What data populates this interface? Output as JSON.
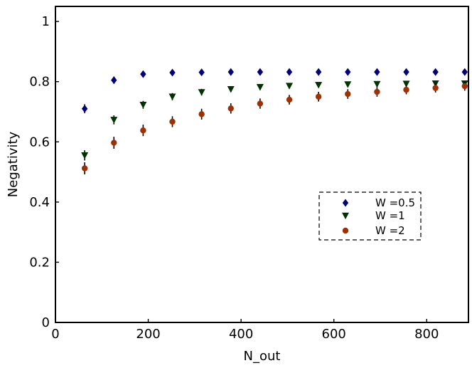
{
  "chart_data": {
    "type": "scatter",
    "title": "",
    "xlabel": "N_out",
    "ylabel": "Negativity",
    "xlim": [
      0,
      890
    ],
    "ylim": [
      0,
      1.05
    ],
    "xticks": [
      0,
      200,
      400,
      600,
      800
    ],
    "xtick_labels": [
      "0",
      "200",
      "400",
      "600",
      "800"
    ],
    "yticks": [
      0,
      0.2,
      0.4,
      0.6,
      0.8,
      1
    ],
    "ytick_labels": [
      "0",
      "0.2",
      "0.4",
      "0.6",
      "0.8",
      "1"
    ],
    "grid": false,
    "legend_position": "center-right",
    "legend_style": "dashed-box",
    "series": [
      {
        "name": "W =0.5",
        "marker": "diamond",
        "color": "#00007a",
        "x": [
          63,
          126,
          189,
          252,
          315,
          378,
          441,
          504,
          567,
          630,
          693,
          756,
          819,
          882
        ],
        "y": [
          0.71,
          0.805,
          0.825,
          0.83,
          0.831,
          0.832,
          0.832,
          0.832,
          0.832,
          0.832,
          0.832,
          0.832,
          0.832,
          0.832
        ],
        "yerr": [
          0.015,
          0.012,
          0.01,
          0.008,
          0.007,
          0.006,
          0.006,
          0.006,
          0.006,
          0.006,
          0.006,
          0.006,
          0.006,
          0.006
        ]
      },
      {
        "name": "W =1",
        "marker": "triangle-down",
        "color": "#003300",
        "x": [
          63,
          126,
          189,
          252,
          315,
          378,
          441,
          504,
          567,
          630,
          693,
          756,
          819,
          882
        ],
        "y": [
          0.555,
          0.673,
          0.723,
          0.75,
          0.765,
          0.775,
          0.782,
          0.786,
          0.789,
          0.791,
          0.792,
          0.793,
          0.794,
          0.794
        ],
        "yerr": [
          0.017,
          0.015,
          0.013,
          0.012,
          0.011,
          0.01,
          0.01,
          0.009,
          0.009,
          0.009,
          0.009,
          0.008,
          0.008,
          0.008
        ]
      },
      {
        "name": "W =2",
        "marker": "circle",
        "color": "#a03000",
        "x": [
          63,
          126,
          189,
          252,
          315,
          378,
          441,
          504,
          567,
          630,
          693,
          756,
          819,
          882
        ],
        "y": [
          0.512,
          0.597,
          0.638,
          0.667,
          0.692,
          0.711,
          0.727,
          0.74,
          0.75,
          0.759,
          0.766,
          0.773,
          0.779,
          0.785
        ],
        "yerr": [
          0.02,
          0.02,
          0.019,
          0.018,
          0.018,
          0.017,
          0.017,
          0.016,
          0.016,
          0.016,
          0.016,
          0.015,
          0.015,
          0.015
        ]
      }
    ]
  }
}
